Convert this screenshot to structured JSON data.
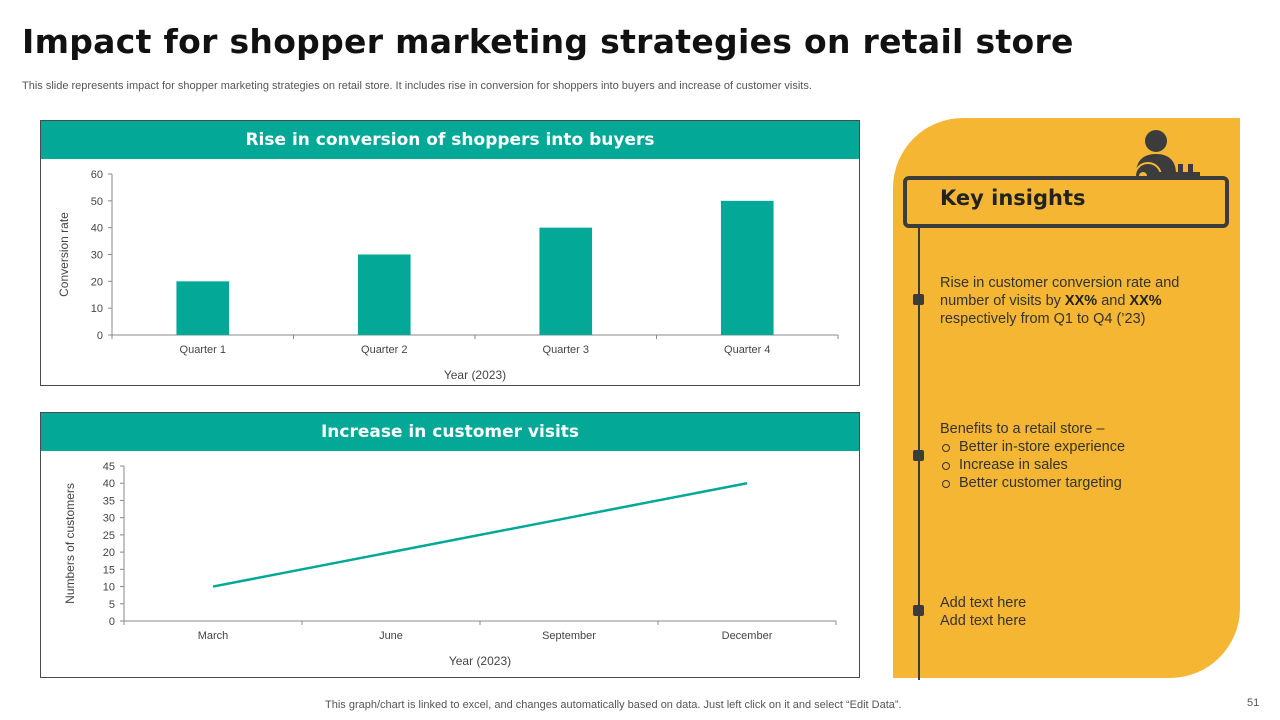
{
  "title": "Impact for shopper marketing strategies on retail store",
  "subtitle": "This slide represents impact for shopper marketing strategies on retail store. It includes rise in conversion for shoppers into buyers and increase of customer visits.",
  "colors": {
    "accent": "#04a896",
    "panel": "#f5b733",
    "dark": "#3c3c3c"
  },
  "chart_data": [
    {
      "type": "bar",
      "title": "Rise in conversion of shoppers into buyers",
      "categories": [
        "Quarter 1",
        "Quarter 2",
        "Quarter 3",
        "Quarter 4"
      ],
      "values": [
        20,
        30,
        40,
        50
      ],
      "xlabel": "Year (2023)",
      "ylabel": "Conversion  rate",
      "ylim": [
        0,
        60
      ],
      "yticks": [
        0,
        10,
        20,
        30,
        40,
        50,
        60
      ],
      "grid": false,
      "color": "#04a896"
    },
    {
      "type": "line",
      "title": "Increase in customer visits",
      "categories": [
        "March",
        "June",
        "September",
        "December"
      ],
      "series": [
        {
          "values": [
            10,
            20,
            30,
            40
          ]
        }
      ],
      "xlabel": "Year (2023)",
      "ylabel": "Numbers  of customers",
      "ylim": [
        0,
        45
      ],
      "yticks": [
        0,
        5,
        10,
        15,
        20,
        25,
        30,
        35,
        40,
        45
      ],
      "grid": false,
      "color": "#04a896"
    }
  ],
  "insights": {
    "title": "Key insights",
    "icon": "user-key-icon",
    "item1": {
      "line1": "Rise in customer conversion rate and",
      "line2_pre": "number of visits by ",
      "bold1": "XX%",
      "mid": " and ",
      "bold2": "XX%",
      "line3": "respectively from Q1 to Q4 (’23)"
    },
    "item2": {
      "heading": "Benefits to a retail store –",
      "points": [
        "Better in-store experience",
        "Increase in sales",
        "Better customer targeting"
      ]
    },
    "item3": {
      "line1": "Add text here",
      "line2": "Add text here"
    }
  },
  "footer": "This graph/chart is linked to excel,  and changes automatically based on data. Just left click on it and select “Edit Data”.",
  "page_number": "51"
}
